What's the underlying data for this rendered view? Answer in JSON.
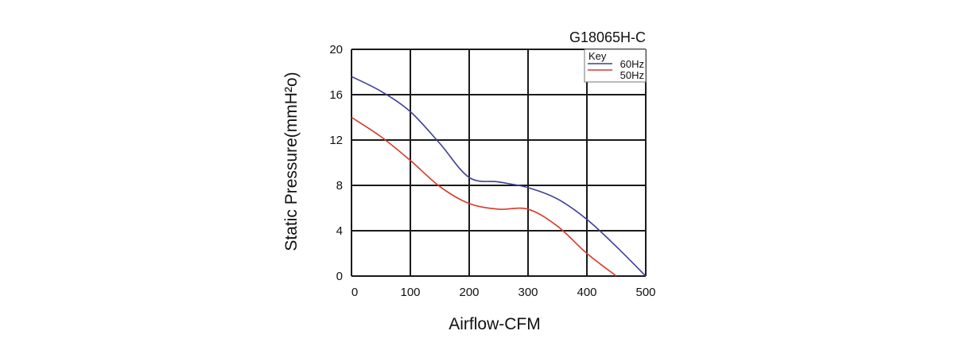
{
  "chart_data": {
    "type": "line",
    "title": "G18065H-C",
    "xlabel": "Airflow-CFM",
    "ylabel": "Static Pressure(mmH²o)",
    "xlim": [
      0,
      500
    ],
    "ylim": [
      0,
      20
    ],
    "xticks": [
      "0",
      "100",
      "200",
      "300",
      "400",
      "500"
    ],
    "yticks": [
      "0",
      "4",
      "8",
      "12",
      "16",
      "20"
    ],
    "grid": true,
    "legend": {
      "title": "Key",
      "placement": "top-right"
    },
    "series": [
      {
        "name": "60Hz",
        "color": "#3c3f96",
        "x": [
          0,
          50,
          100,
          150,
          200,
          250,
          300,
          350,
          400,
          450,
          500
        ],
        "y": [
          17.6,
          16.3,
          14.5,
          11.7,
          8.7,
          8.3,
          7.8,
          6.8,
          5.0,
          2.6,
          0
        ]
      },
      {
        "name": "50Hz",
        "color": "#d9382a",
        "x": [
          0,
          50,
          100,
          150,
          200,
          250,
          300,
          350,
          400,
          450
        ],
        "y": [
          14.0,
          12.3,
          10.2,
          7.9,
          6.4,
          5.9,
          5.9,
          4.4,
          2.0,
          0
        ]
      }
    ]
  }
}
